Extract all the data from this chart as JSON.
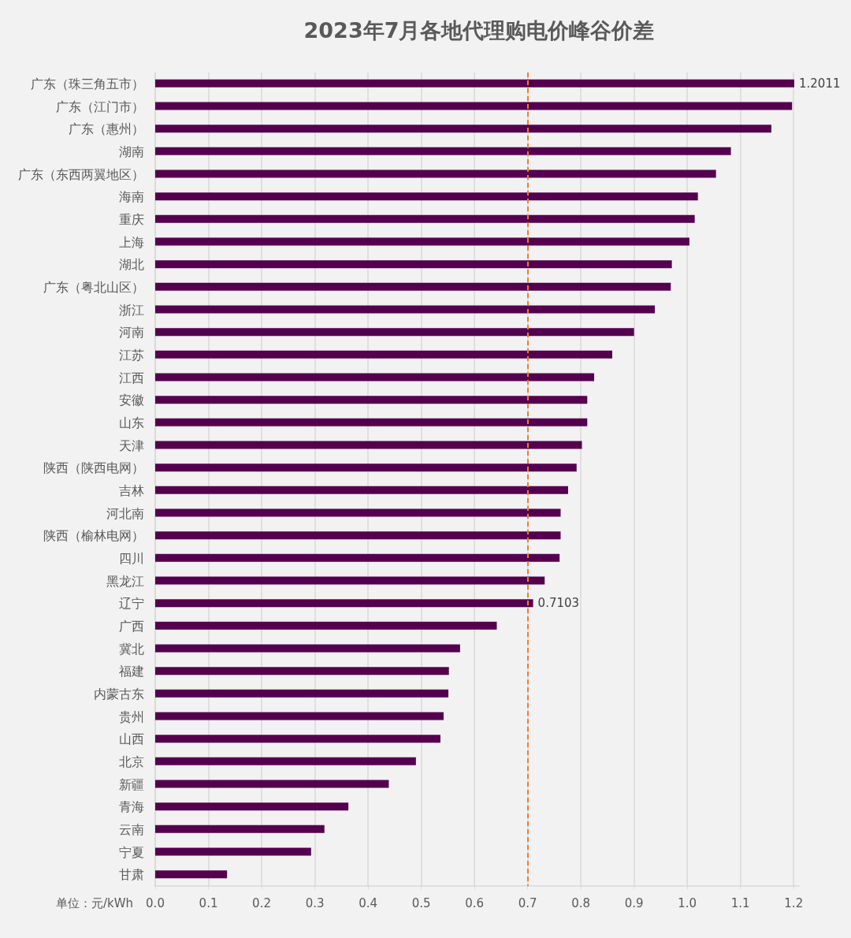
{
  "chart_data": {
    "type": "bar",
    "orientation": "horizontal",
    "title": "2023年7月各地代理购电价峰谷价差",
    "xlabel": "单位：元/kWh",
    "categories": [
      "广东（珠三角五市）",
      "广东（江门市）",
      "广东（惠州）",
      "湖南",
      "广东（东西两翼地区）",
      "海南",
      "重庆",
      "上海",
      "湖北",
      "广东（粤北山区）",
      "浙江",
      "河南",
      "江苏",
      "江西",
      "安徽",
      "山东",
      "天津",
      "陕西（陕西电网）",
      "吉林",
      "河北南",
      "陕西（榆林电网）",
      "四川",
      "黑龙江",
      "辽宁",
      "广西",
      "冀北",
      "福建",
      "内蒙古东",
      "贵州",
      "山西",
      "北京",
      "新疆",
      "青海",
      "云南",
      "宁夏",
      "甘肃"
    ],
    "values": [
      1.2011,
      1.197,
      1.158,
      1.082,
      1.054,
      1.02,
      1.014,
      1.004,
      0.971,
      0.969,
      0.939,
      0.9,
      0.859,
      0.825,
      0.812,
      0.812,
      0.802,
      0.792,
      0.776,
      0.762,
      0.762,
      0.76,
      0.732,
      0.7103,
      0.642,
      0.573,
      0.552,
      0.551,
      0.542,
      0.536,
      0.49,
      0.439,
      0.363,
      0.318,
      0.293,
      0.135
    ],
    "value_labels": [
      "1.2011",
      null,
      null,
      null,
      null,
      null,
      null,
      null,
      null,
      null,
      null,
      null,
      null,
      null,
      null,
      null,
      null,
      null,
      null,
      null,
      null,
      null,
      null,
      "0.7103",
      null,
      null,
      null,
      null,
      null,
      null,
      null,
      null,
      null,
      null,
      null,
      null
    ],
    "color": "#55004f",
    "xlim": [
      0,
      1.21
    ],
    "xticks": [
      {
        "value": 0,
        "label": "0.0"
      },
      0.1,
      0.2,
      0.3,
      0.4,
      0.5,
      0.6,
      0.7,
      0.8,
      0.9,
      {
        "value": 1,
        "label": "1.0"
      },
      1.1,
      1.2
    ],
    "grid": "x",
    "ref_lines": [
      {
        "axis": "x",
        "value": 0.7,
        "color": "#ed7d31",
        "line_style": "dashed"
      }
    ]
  }
}
